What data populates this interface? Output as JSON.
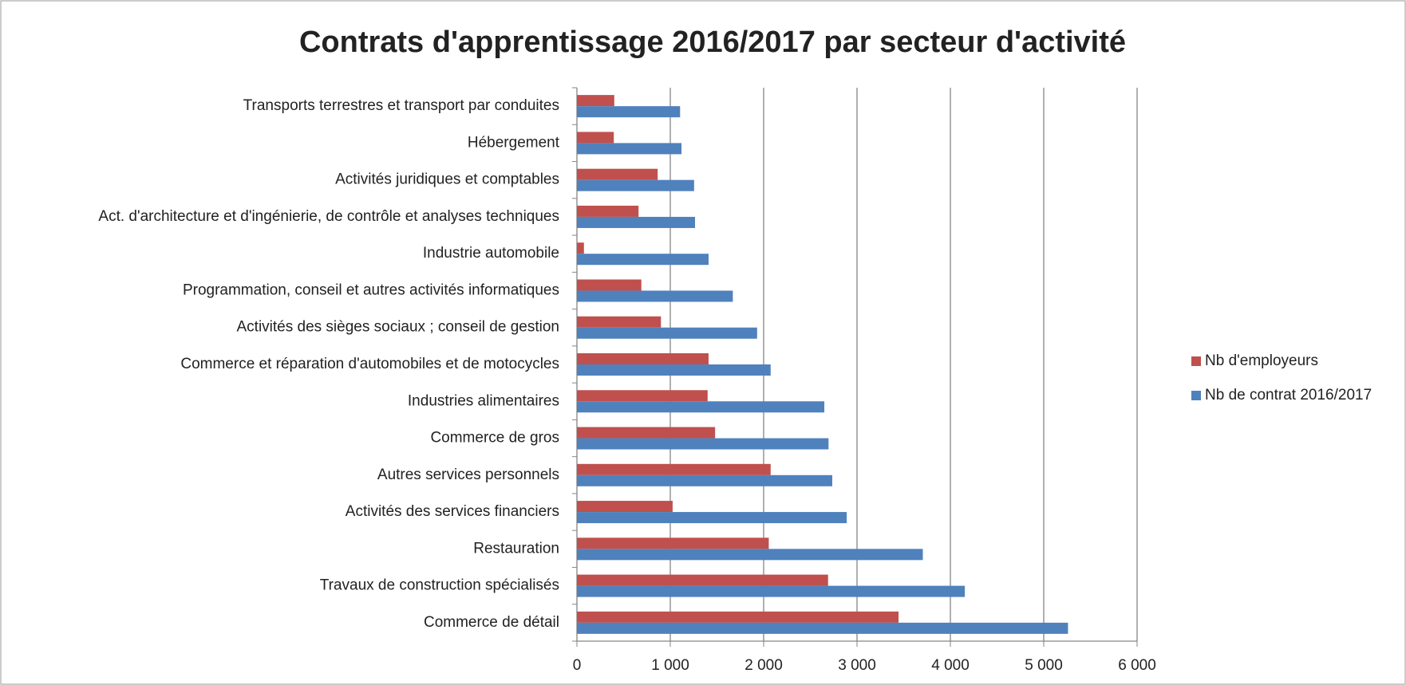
{
  "chart_data": {
    "type": "bar",
    "orientation": "horizontal",
    "title": "Contrats d'apprentissage 2016/2017 par secteur d'activité",
    "categories": [
      "Commerce de détail",
      "Travaux de construction spécialisés",
      "Restauration",
      "Activités des services financiers",
      "Autres services personnels",
      "Commerce de gros",
      "Industries alimentaires",
      "Commerce et réparation d'automobiles et de motocycles",
      "Activités des sièges sociaux ; conseil de gestion",
      "Programmation, conseil et autres activités informatiques",
      "Industrie automobile",
      "Act. d'architecture et d'ingénierie, de contrôle et analyses techniques",
      "Activités juridiques et comptables",
      "Hébergement",
      "Transports terrestres et transport par conduites"
    ],
    "series": [
      {
        "name": "Nb d'employeurs",
        "color": "#c0504d",
        "values": [
          3445,
          2690,
          2055,
          1025,
          2075,
          1480,
          1400,
          1410,
          900,
          690,
          75,
          660,
          865,
          395,
          400
        ]
      },
      {
        "name": "Nb de contrat 2016/2017",
        "color": "#4f81bd",
        "values": [
          5260,
          4155,
          3705,
          2890,
          2735,
          2695,
          2650,
          2075,
          1930,
          1670,
          1410,
          1265,
          1255,
          1120,
          1105
        ]
      }
    ],
    "xlim": [
      0,
      6000
    ],
    "xticks": [
      0,
      {
        "value": 1000,
        "label": "1 000"
      },
      {
        "value": 2000,
        "label": "2 000"
      },
      {
        "value": 3000,
        "label": "3 000"
      },
      {
        "value": 4000,
        "label": "4 000"
      },
      {
        "value": 5000,
        "label": "5 000"
      },
      {
        "value": 6000,
        "label": "6 000"
      }
    ],
    "grid": true,
    "legend": "right"
  }
}
